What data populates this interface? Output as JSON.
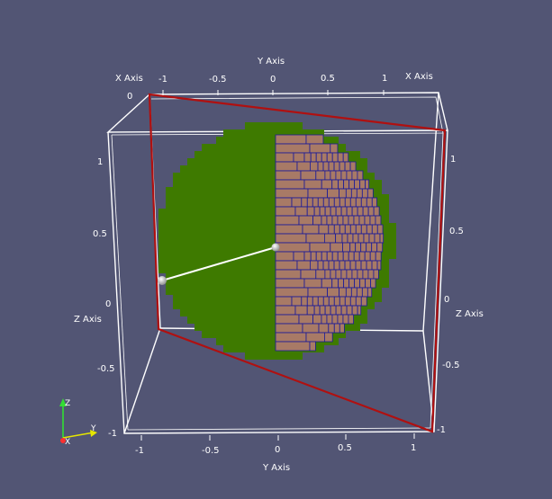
{
  "colors": {
    "background": "#525574",
    "bounding_box": "#ffffff",
    "clip_plane": "#b01010",
    "sphere_surface": "#3e7a00",
    "voxel_fill": "#a87a66",
    "voxel_edge": "#1a1a9a",
    "widget_line": "#ffffff",
    "axis_x": "#ff3030",
    "axis_y": "#e6e600",
    "axis_z": "#33dd33"
  },
  "axes": {
    "top": {
      "x_title_left": "X Axis",
      "x_title_right": "X Axis",
      "y_title": "Y Axis",
      "left_zero": "0",
      "ticks": [
        "-1",
        "-0.5",
        "0",
        "0.5",
        "1"
      ]
    },
    "bottom": {
      "y_title": "Y Axis",
      "ticks": [
        "-1",
        "-0.5",
        "0",
        "0.5",
        "1"
      ]
    },
    "left": {
      "z_title": "Z Axis",
      "ticks": [
        "1",
        "0.5",
        "0",
        "-0.5",
        "-1"
      ]
    },
    "right": {
      "z_title": "Z Axis",
      "ticks": [
        "1",
        "0.5",
        "0",
        "-0.5",
        "-1"
      ]
    }
  },
  "orientation": {
    "x": "X",
    "y": "Y",
    "z": "Z"
  }
}
